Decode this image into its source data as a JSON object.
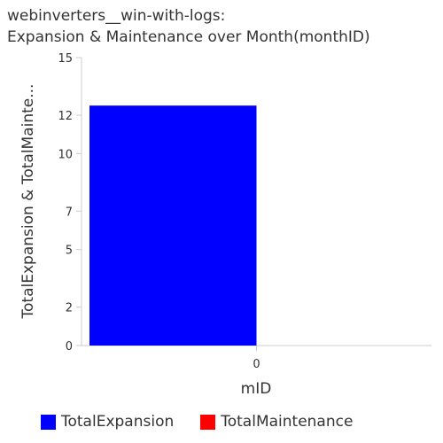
{
  "title_lines": [
    "webinverters__win-with-logs:",
    "Expansion & Maintenance over Month(monthID)"
  ],
  "chart_data": {
    "type": "bar",
    "title": "webinverters__win-with-logs: Expansion & Maintenance over Month(monthID)",
    "xlabel": "mID",
    "ylabel": "TotalExpansion & TotalMainte...",
    "categories": [
      "0"
    ],
    "ylim": [
      0,
      15
    ],
    "yticks": [
      0,
      2,
      5,
      7,
      10,
      12,
      15
    ],
    "grid": false,
    "legend_position": "bottom",
    "series": [
      {
        "name": "TotalExpansion",
        "color": "#0000ff",
        "values": [
          12.5
        ]
      },
      {
        "name": "TotalMaintenance",
        "color": "#ff0000",
        "values": [
          0
        ]
      }
    ]
  }
}
